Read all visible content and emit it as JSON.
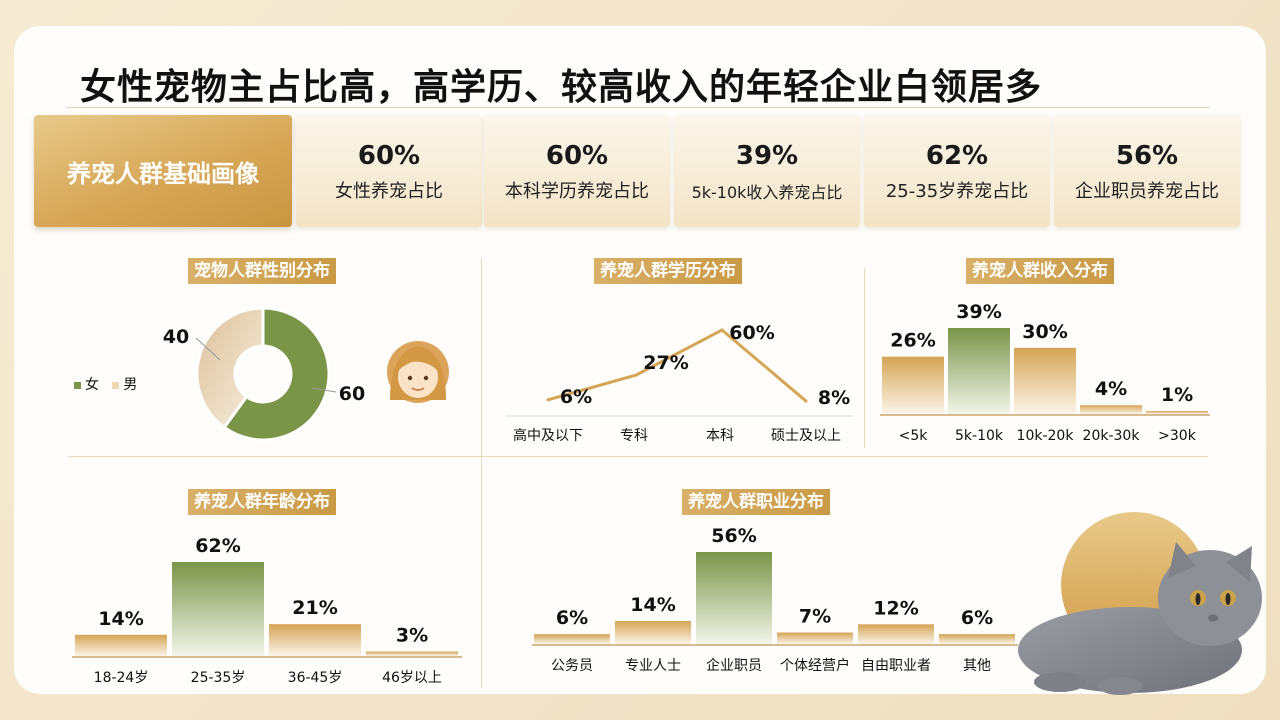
{
  "page_title": "女性宠物主占比高，高学历、较高收入的年轻企业白领居多",
  "summary": {
    "main_label": "养宠人群基础画像",
    "stats": [
      {
        "value": "60%",
        "label": "女性养宠占比"
      },
      {
        "value": "60%",
        "label": "本科学历养宠占比"
      },
      {
        "value": "39%",
        "label": "5k-10k收入养宠占比"
      },
      {
        "value": "62%",
        "label": "25-35岁养宠占比"
      },
      {
        "value": "56%",
        "label": "企业职员养宠占比"
      }
    ]
  },
  "colors": {
    "gold": "#d5a455",
    "green": "#7a9448",
    "light_gold": "#ecd9b8"
  },
  "chart_data": [
    {
      "type": "pie",
      "title": "宠物人群性别分布",
      "categories": [
        "女",
        "男"
      ],
      "values": [
        60,
        40
      ],
      "labels": [
        "60",
        "40"
      ],
      "legend": "left"
    },
    {
      "type": "line",
      "title": "养宠人群学历分布",
      "categories": [
        "高中及以下",
        "专科",
        "本科",
        "硕士及以上"
      ],
      "values": [
        6,
        27,
        60,
        8
      ],
      "labels": [
        "6%",
        "27%",
        "60%",
        "8%"
      ],
      "ylim": [
        0,
        60
      ]
    },
    {
      "type": "bar",
      "title": "养宠人群收入分布",
      "categories": [
        "<5k",
        "5k-10k",
        "10k-20k",
        "20k-30k",
        ">30k"
      ],
      "values": [
        26,
        39,
        30,
        4,
        1
      ],
      "labels": [
        "26%",
        "39%",
        "30%",
        "4%",
        "1%"
      ],
      "highlight_index": 1
    },
    {
      "type": "bar",
      "title": "养宠人群年龄分布",
      "categories": [
        "18-24岁",
        "25-35岁",
        "36-45岁",
        "46岁以上"
      ],
      "values": [
        14,
        62,
        21,
        3
      ],
      "labels": [
        "14%",
        "62%",
        "21%",
        "3%"
      ],
      "highlight_index": 1
    },
    {
      "type": "bar",
      "title": "养宠人群职业分布",
      "categories": [
        "公务员",
        "专业人士",
        "企业职员",
        "个体经营户",
        "自由职业者",
        "其他"
      ],
      "values": [
        6,
        14,
        56,
        7,
        12,
        6
      ],
      "labels": [
        "6%",
        "14%",
        "56%",
        "7%",
        "12%",
        "6%"
      ],
      "highlight_index": 2
    }
  ]
}
